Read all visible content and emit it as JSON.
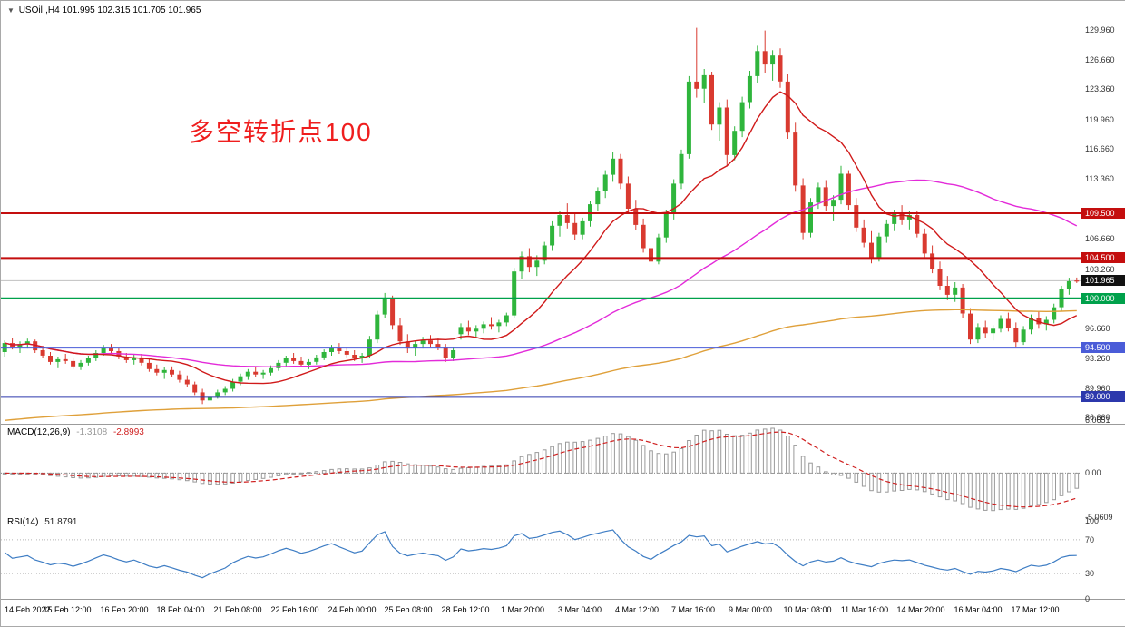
{
  "window": {
    "title_symbol": "USOil·,H4",
    "title_ohlc": "101.995 102.315 101.705 101.965"
  },
  "annotation": {
    "text": "多空转折点100",
    "color": "#ef1e1e"
  },
  "chart_data": {
    "type": "candlestick",
    "symbol": "USOil",
    "timeframe": "H4",
    "y_range": [
      86.0,
      133.2
    ],
    "up_color": "#2fb53c",
    "down_color": "#d93a30",
    "y_axis_ticks": [
      "129.960",
      "126.660",
      "123.360",
      "119.960",
      "116.660",
      "113.360",
      "106.660",
      "103.260",
      "96.660",
      "93.260",
      "89.960",
      "86.660"
    ],
    "x_labels": [
      "14 Feb 2022",
      "15 Feb 12:00",
      "16 Feb 20:00",
      "18 Feb 04:00",
      "21 Feb 08:00",
      "22 Feb 16:00",
      "24 Feb 00:00",
      "25 Feb 08:00",
      "28 Feb 12:00",
      "1 Mar 20:00",
      "3 Mar 04:00",
      "4 Mar 12:00",
      "7 Mar 16:00",
      "9 Mar 00:00",
      "10 Mar 08:00",
      "11 Mar 16:00",
      "14 Mar 20:00",
      "16 Mar 04:00",
      "17 Mar 12:00"
    ],
    "horizontal_levels": [
      {
        "price": 109.5,
        "label": "109.500",
        "color": "#c40e0e"
      },
      {
        "price": 104.5,
        "label": "104.500",
        "color": "#c40e0e"
      },
      {
        "price": 100.0,
        "label": "100.000",
        "color": "#00a14b"
      },
      {
        "price": 94.5,
        "label": "94.500",
        "color": "#4a5cd8"
      },
      {
        "price": 89.0,
        "label": "89.000",
        "color": "#2c38ac"
      }
    ],
    "current_price": {
      "value": 101.965,
      "label": "101.965",
      "badge_color": "#111111",
      "line_color": "#c0c0c0"
    },
    "moving_averages": [
      {
        "name": "fast",
        "type": "sma",
        "period": 13,
        "color": "#d01a1a"
      },
      {
        "name": "mid",
        "type": "sma",
        "period": 50,
        "color": "#e32bd9"
      },
      {
        "name": "slow",
        "type": "ema",
        "seed": 86.3,
        "alpha": 0.009,
        "color": "#dfa03a"
      }
    ],
    "macd": {
      "label": "MACD(12,26,9)",
      "value_main": "-1.3108",
      "value_signal": "-2.8993",
      "fast": 12,
      "slow": 26,
      "signal": 9,
      "axis_labels": [
        "6.0651",
        "0.00",
        "-5.0609"
      ],
      "hist_color": "#9a9a9a",
      "signal_color": "#cf1f1f"
    },
    "rsi": {
      "label": "RSI(14)",
      "value": "51.8791",
      "period": 14,
      "axis_labels": [
        "100",
        "70",
        "30",
        "0"
      ],
      "guide_levels": [
        70,
        30
      ],
      "line_color": "#3e7dc4"
    },
    "ohlc": [
      [
        94.0,
        95.3,
        93.5,
        95.0
      ],
      [
        95.0,
        95.6,
        94.3,
        94.6
      ],
      [
        94.6,
        95.2,
        93.9,
        94.9
      ],
      [
        94.9,
        95.5,
        94.4,
        95.2
      ],
      [
        95.2,
        95.4,
        93.9,
        94.2
      ],
      [
        94.2,
        94.7,
        93.3,
        93.6
      ],
      [
        93.6,
        94.0,
        92.6,
        92.9
      ],
      [
        92.9,
        93.5,
        92.2,
        93.2
      ],
      [
        93.2,
        93.8,
        92.7,
        93.0
      ],
      [
        93.0,
        93.4,
        92.1,
        92.4
      ],
      [
        92.4,
        93.1,
        92.0,
        92.8
      ],
      [
        92.8,
        93.6,
        92.5,
        93.3
      ],
      [
        93.3,
        94.2,
        93.0,
        93.9
      ],
      [
        93.9,
        94.8,
        93.6,
        94.5
      ],
      [
        94.5,
        94.9,
        93.8,
        94.1
      ],
      [
        94.1,
        94.5,
        93.2,
        93.5
      ],
      [
        93.5,
        93.9,
        92.8,
        93.1
      ],
      [
        93.1,
        93.7,
        92.6,
        93.4
      ],
      [
        93.4,
        93.8,
        92.5,
        92.8
      ],
      [
        92.8,
        93.2,
        91.8,
        92.1
      ],
      [
        92.1,
        92.6,
        91.4,
        91.7
      ],
      [
        91.7,
        92.3,
        91.0,
        92.0
      ],
      [
        92.0,
        92.4,
        91.2,
        91.5
      ],
      [
        91.5,
        91.9,
        90.6,
        90.9
      ],
      [
        90.9,
        91.4,
        90.1,
        90.4
      ],
      [
        90.4,
        90.7,
        89.2,
        89.5
      ],
      [
        89.5,
        89.9,
        88.2,
        88.6
      ],
      [
        88.6,
        89.4,
        88.3,
        89.1
      ],
      [
        89.1,
        89.8,
        88.8,
        89.5
      ],
      [
        89.5,
        90.2,
        89.2,
        89.9
      ],
      [
        89.9,
        91.0,
        89.6,
        90.7
      ],
      [
        90.7,
        91.6,
        90.3,
        91.3
      ],
      [
        91.3,
        92.1,
        90.9,
        91.8
      ],
      [
        91.8,
        92.4,
        91.2,
        91.5
      ],
      [
        91.5,
        92.0,
        91.0,
        91.7
      ],
      [
        91.7,
        92.5,
        91.4,
        92.2
      ],
      [
        92.2,
        93.1,
        91.9,
        92.8
      ],
      [
        92.8,
        93.6,
        92.4,
        93.3
      ],
      [
        93.3,
        93.9,
        92.7,
        93.0
      ],
      [
        93.0,
        93.5,
        92.3,
        92.6
      ],
      [
        92.6,
        93.2,
        92.1,
        92.9
      ],
      [
        92.9,
        93.7,
        92.6,
        93.4
      ],
      [
        93.4,
        94.3,
        93.1,
        94.0
      ],
      [
        94.0,
        94.8,
        93.6,
        94.5
      ],
      [
        94.5,
        95.0,
        93.8,
        94.1
      ],
      [
        94.1,
        94.6,
        93.4,
        93.7
      ],
      [
        93.7,
        94.2,
        93.0,
        93.3
      ],
      [
        93.3,
        93.9,
        92.8,
        93.6
      ],
      [
        93.6,
        95.8,
        93.3,
        95.4
      ],
      [
        95.4,
        98.6,
        95.0,
        98.2
      ],
      [
        98.2,
        100.6,
        97.8,
        99.9
      ],
      [
        99.9,
        100.3,
        96.5,
        97.0
      ],
      [
        97.0,
        97.8,
        94.8,
        95.2
      ],
      [
        95.2,
        96.0,
        93.9,
        94.4
      ],
      [
        94.4,
        95.3,
        93.6,
        94.9
      ],
      [
        94.9,
        95.7,
        94.4,
        95.3
      ],
      [
        95.3,
        95.9,
        94.6,
        94.9
      ],
      [
        94.9,
        95.5,
        94.2,
        94.6
      ],
      [
        94.6,
        94.9,
        92.9,
        93.3
      ],
      [
        93.3,
        94.6,
        93.0,
        94.2
      ],
      [
        96.0,
        97.2,
        95.4,
        96.8
      ],
      [
        96.8,
        97.5,
        95.9,
        96.3
      ],
      [
        96.3,
        97.0,
        95.6,
        96.6
      ],
      [
        96.6,
        97.4,
        96.1,
        97.1
      ],
      [
        97.1,
        97.9,
        96.5,
        96.9
      ],
      [
        96.9,
        97.6,
        96.2,
        97.3
      ],
      [
        97.3,
        98.4,
        96.9,
        98.1
      ],
      [
        98.1,
        103.4,
        97.8,
        103.0
      ],
      [
        103.0,
        105.2,
        102.2,
        104.7
      ],
      [
        104.7,
        105.6,
        102.9,
        103.5
      ],
      [
        103.5,
        104.8,
        102.5,
        104.2
      ],
      [
        104.2,
        106.3,
        103.8,
        105.9
      ],
      [
        105.9,
        108.6,
        105.3,
        108.1
      ],
      [
        108.1,
        109.8,
        106.9,
        109.3
      ],
      [
        109.3,
        110.6,
        107.8,
        108.4
      ],
      [
        108.4,
        109.5,
        106.5,
        107.1
      ],
      [
        107.1,
        109.0,
        106.6,
        108.6
      ],
      [
        108.6,
        110.9,
        108.0,
        110.5
      ],
      [
        110.5,
        112.4,
        109.7,
        112.0
      ],
      [
        112.0,
        114.3,
        111.2,
        113.8
      ],
      [
        113.8,
        116.3,
        113.0,
        115.6
      ],
      [
        115.6,
        116.1,
        112.2,
        112.8
      ],
      [
        112.8,
        113.6,
        109.4,
        110.0
      ],
      [
        110.0,
        111.0,
        107.6,
        108.2
      ],
      [
        108.2,
        108.9,
        105.1,
        105.6
      ],
      [
        105.6,
        106.8,
        103.4,
        104.1
      ],
      [
        104.1,
        107.2,
        103.8,
        106.8
      ],
      [
        106.8,
        109.9,
        106.2,
        109.4
      ],
      [
        109.4,
        113.3,
        108.8,
        112.8
      ],
      [
        112.8,
        116.6,
        112.2,
        116.1
      ],
      [
        116.1,
        124.8,
        115.6,
        124.2
      ],
      [
        124.2,
        130.2,
        122.4,
        123.4
      ],
      [
        123.4,
        125.6,
        121.8,
        124.9
      ],
      [
        124.9,
        125.3,
        118.8,
        119.4
      ],
      [
        119.4,
        121.9,
        117.6,
        121.3
      ],
      [
        121.3,
        122.2,
        114.7,
        116.0
      ],
      [
        116.0,
        119.2,
        115.4,
        118.7
      ],
      [
        118.7,
        122.5,
        118.0,
        121.9
      ],
      [
        121.9,
        125.4,
        121.2,
        124.8
      ],
      [
        124.8,
        128.2,
        124.0,
        127.6
      ],
      [
        127.6,
        129.9,
        125.2,
        126.1
      ],
      [
        126.1,
        127.7,
        124.3,
        127.1
      ],
      [
        127.1,
        127.9,
        123.5,
        124.2
      ],
      [
        124.2,
        125.0,
        117.8,
        118.5
      ],
      [
        118.5,
        119.6,
        111.9,
        112.6
      ],
      [
        112.6,
        113.4,
        106.6,
        107.3
      ],
      [
        107.3,
        111.2,
        106.8,
        110.7
      ],
      [
        110.7,
        112.9,
        110.0,
        112.4
      ],
      [
        112.4,
        113.2,
        109.8,
        110.3
      ],
      [
        110.3,
        111.5,
        108.6,
        111.0
      ],
      [
        111.0,
        114.8,
        110.5,
        113.9
      ],
      [
        113.9,
        114.3,
        109.9,
        110.4
      ],
      [
        110.4,
        111.2,
        107.4,
        107.9
      ],
      [
        107.9,
        108.8,
        105.7,
        106.2
      ],
      [
        106.2,
        107.5,
        103.9,
        104.5
      ],
      [
        104.5,
        107.3,
        104.1,
        106.9
      ],
      [
        106.9,
        108.8,
        106.2,
        108.3
      ],
      [
        108.3,
        109.9,
        107.5,
        109.4
      ],
      [
        109.4,
        110.4,
        108.2,
        108.8
      ],
      [
        108.8,
        109.8,
        107.7,
        109.3
      ],
      [
        109.3,
        109.7,
        106.8,
        107.2
      ],
      [
        107.2,
        107.8,
        104.6,
        105.0
      ],
      [
        105.0,
        105.9,
        102.8,
        103.3
      ],
      [
        103.3,
        104.1,
        100.9,
        101.4
      ],
      [
        101.4,
        102.5,
        99.8,
        100.4
      ],
      [
        100.4,
        101.8,
        99.6,
        101.2
      ],
      [
        101.2,
        101.6,
        97.8,
        98.3
      ],
      [
        98.3,
        98.9,
        94.9,
        95.4
      ],
      [
        95.4,
        97.2,
        95.0,
        96.8
      ],
      [
        96.8,
        97.5,
        95.6,
        96.1
      ],
      [
        96.1,
        97.0,
        95.3,
        96.6
      ],
      [
        96.6,
        98.1,
        96.2,
        97.7
      ],
      [
        97.7,
        98.4,
        96.3,
        96.7
      ],
      [
        96.7,
        97.3,
        94.6,
        95.1
      ],
      [
        95.1,
        96.9,
        94.8,
        96.5
      ],
      [
        96.5,
        98.2,
        96.0,
        97.8
      ],
      [
        97.8,
        98.6,
        96.6,
        97.1
      ],
      [
        97.1,
        98.0,
        96.4,
        97.6
      ],
      [
        97.6,
        99.4,
        97.2,
        99.0
      ],
      [
        99.0,
        101.4,
        98.6,
        101.0
      ],
      [
        101.0,
        102.3,
        100.4,
        101.9
      ],
      [
        101.995,
        102.315,
        101.705,
        101.965
      ]
    ]
  }
}
